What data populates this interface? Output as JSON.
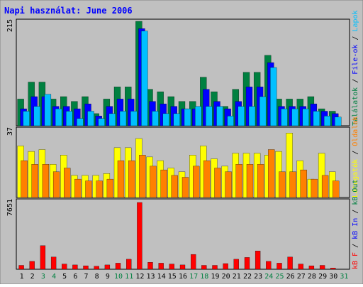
{
  "title": "Napi használat: June 2006",
  "colors": {
    "background": "#C0C0C0",
    "title": "#0000FF",
    "hits": "#008040",
    "files": "#0000FF",
    "pages": "#00C0FF",
    "visits": "#FFFF00",
    "sites": "#FF8000",
    "kbytes": "#FF0000",
    "weekend_day": "#008040",
    "weekday": "#000000"
  },
  "chart_data": [
    {
      "type": "bar",
      "panel": "top",
      "axis_max_label": "215",
      "ylim": [
        0,
        215
      ],
      "series": [
        {
          "name": "Találatok",
          "values": [
            55,
            90,
            90,
            55,
            60,
            50,
            60,
            25,
            55,
            80,
            80,
            215,
            75,
            70,
            60,
            50,
            50,
            100,
            70,
            40,
            75,
            110,
            110,
            145,
            55,
            55,
            55,
            60,
            35,
            30
          ]
        },
        {
          "name": "File-ok",
          "values": [
            35,
            60,
            60,
            40,
            40,
            35,
            45,
            20,
            40,
            55,
            55,
            200,
            50,
            45,
            40,
            35,
            35,
            75,
            50,
            35,
            50,
            80,
            80,
            130,
            40,
            40,
            40,
            45,
            30,
            25
          ]
        },
        {
          "name": "Lapok",
          "values": [
            30,
            40,
            65,
            35,
            30,
            15,
            30,
            15,
            25,
            30,
            30,
            195,
            30,
            25,
            25,
            35,
            40,
            40,
            40,
            20,
            40,
            40,
            60,
            120,
            35,
            35,
            35,
            30,
            20,
            18
          ]
        }
      ]
    },
    {
      "type": "bar",
      "panel": "middle",
      "axis_max_label": "37",
      "ylim": [
        0,
        37
      ],
      "series": [
        {
          "name": "Látogatók",
          "values": [
            28,
            25,
            26,
            18,
            23,
            12,
            12,
            12,
            13,
            27,
            27,
            32,
            22,
            20,
            16,
            14,
            23,
            28,
            21,
            17,
            24,
            24,
            24,
            23,
            25,
            35,
            20,
            10,
            24,
            14
          ]
        },
        {
          "name": "Oldalak",
          "values": [
            20,
            18,
            18,
            14,
            16,
            10,
            9,
            9,
            10,
            20,
            20,
            23,
            17,
            15,
            12,
            11,
            17,
            20,
            16,
            14,
            18,
            18,
            18,
            26,
            14,
            14,
            15,
            10,
            12,
            9
          ]
        }
      ]
    },
    {
      "type": "bar",
      "panel": "bottom",
      "axis_max_label": "7651",
      "ylim": [
        0,
        7651
      ],
      "series": [
        {
          "name": "kB F",
          "values": [
            450,
            900,
            2700,
            1400,
            600,
            500,
            400,
            350,
            500,
            700,
            1150,
            7651,
            800,
            700,
            600,
            500,
            1700,
            450,
            450,
            650,
            1150,
            1350,
            2100,
            900,
            700,
            1400,
            600,
            400,
            450,
            150
          ]
        }
      ]
    }
  ],
  "x_axis": {
    "days": [
      "1",
      "2",
      "3",
      "4",
      "5",
      "6",
      "7",
      "8",
      "9",
      "10",
      "11",
      "12",
      "13",
      "14",
      "15",
      "16",
      "17",
      "18",
      "19",
      "20",
      "21",
      "22",
      "23",
      "24",
      "25",
      "26",
      "27",
      "28",
      "29",
      "30",
      "31"
    ],
    "weekend_days": [
      3,
      4,
      10,
      11,
      17,
      18,
      24,
      25,
      31
    ]
  },
  "legends": {
    "top": [
      "Találatok",
      "File-ok",
      "Lapok"
    ],
    "middle": [
      "Látogatók",
      "Oldalak"
    ],
    "bottom": [
      "kB F",
      "kB In",
      "kB Out"
    ]
  },
  "legend_separator": " / "
}
